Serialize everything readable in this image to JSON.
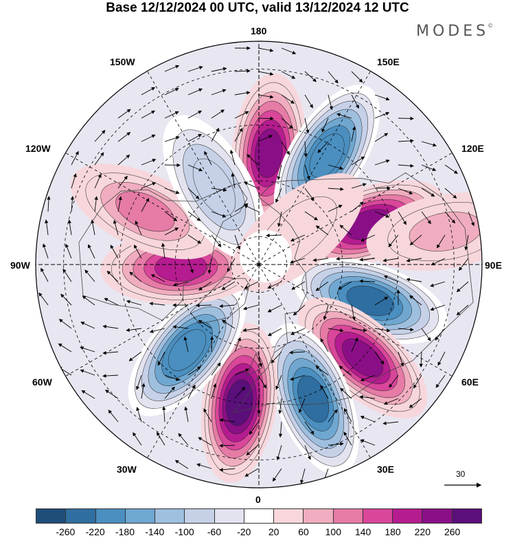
{
  "title": "Base 12/12/2024 00 UTC, valid 13/12/2024 12 UTC",
  "brand": {
    "text": "MODES",
    "mark": "©"
  },
  "longitude_labels": {
    "top": "180",
    "bottom": "0",
    "left": "90W",
    "right": "90E",
    "upper_left_1": "150W",
    "upper_left_2": "120W",
    "upper_right_1": "150E",
    "upper_right_2": "120E",
    "lower_left_1": "60W",
    "lower_left_2": "30W",
    "lower_right_1": "60E",
    "lower_right_2": "30E"
  },
  "reference_vector": {
    "value": "30"
  },
  "colorbar": {
    "colors": [
      "#1f4e79",
      "#2f6ea0",
      "#4a8fc0",
      "#6fa7d0",
      "#9fbfdf",
      "#c6d1e8",
      "#e3e3ef",
      "#ffffff",
      "#f7d7dc",
      "#f0adbf",
      "#e67ba6",
      "#d9469a",
      "#b51c8f",
      "#8a0f86",
      "#5a0f7a"
    ],
    "labels": [
      "-260",
      "-220",
      "-180",
      "-140",
      "-100",
      "-60",
      "-20",
      "20",
      "60",
      "100",
      "140",
      "180",
      "220",
      "260"
    ]
  },
  "map_fields": {
    "anomalies": [
      {
        "lon": 175,
        "lat": 50,
        "value": 240
      },
      {
        "lon": 148,
        "lat": 44,
        "value": -220
      },
      {
        "lon": 110,
        "lat": 48,
        "value": 230
      },
      {
        "lon": 72,
        "lat": 48,
        "value": -240
      },
      {
        "lon": 48,
        "lat": 40,
        "value": 250
      },
      {
        "lon": 22,
        "lat": 38,
        "value": -240
      },
      {
        "lon": -8,
        "lat": 40,
        "value": 260
      },
      {
        "lon": -40,
        "lat": 50,
        "value": -220
      },
      {
        "lon": -88,
        "lat": 62,
        "value": 200
      },
      {
        "lon": -115,
        "lat": 45,
        "value": 110
      },
      {
        "lon": -150,
        "lat": 58,
        "value": -100
      },
      {
        "lon": 100,
        "lat": 22,
        "value": 70
      },
      {
        "lon": 130,
        "lat": 72,
        "value": 30
      }
    ]
  }
}
